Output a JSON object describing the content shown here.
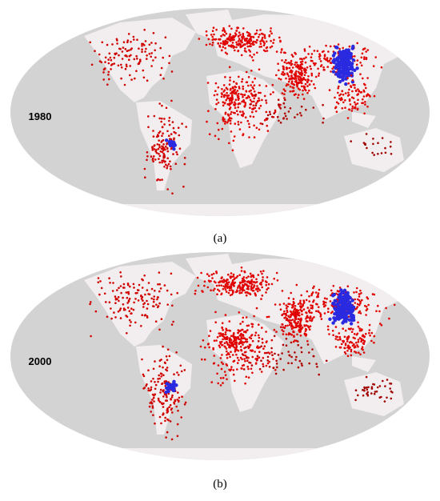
{
  "panels": [
    {
      "label": "1980",
      "caption": "(a)"
    },
    {
      "label": "2000",
      "caption": "(b)"
    }
  ]
}
